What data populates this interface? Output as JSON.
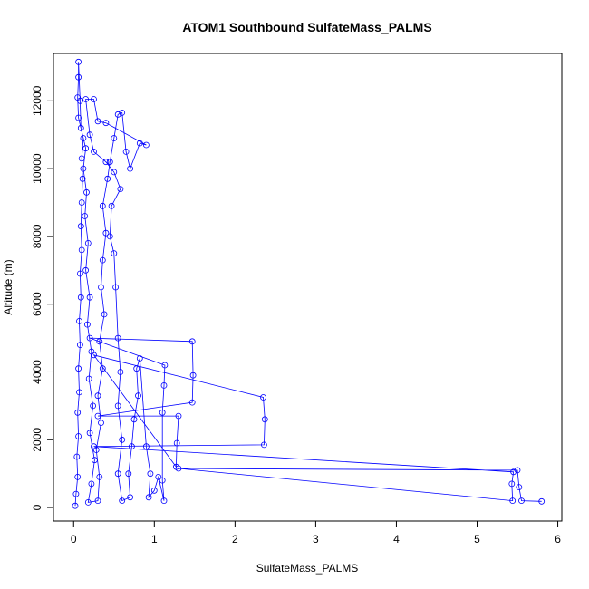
{
  "chart_data": {
    "type": "scatter",
    "title": "ATOM1 Southbound SulfateMass_PALMS",
    "xlabel": "SulfateMass_PALMS",
    "ylabel": "Altitude (m)",
    "xlim": [
      -0.25,
      6.05
    ],
    "ylim": [
      -400,
      13400
    ],
    "x_ticks": [
      0,
      1,
      2,
      3,
      4,
      5,
      6
    ],
    "x_tick_labels": [
      "0",
      "1",
      "2",
      "3",
      "4",
      "5",
      "6"
    ],
    "y_ticks": [
      0,
      2000,
      4000,
      6000,
      8000,
      10000,
      12000
    ],
    "y_tick_labels": [
      "0",
      "2000",
      "4000",
      "6000",
      "8000",
      "10000",
      "12000"
    ],
    "grid": false,
    "marker": "open circle joined by lines",
    "color": "#0000ff",
    "series": [
      {
        "values": [
          [
            0.02,
            50
          ],
          [
            0.03,
            400
          ],
          [
            0.05,
            900
          ],
          [
            0.04,
            1500
          ],
          [
            0.06,
            2100
          ],
          [
            0.05,
            2800
          ],
          [
            0.07,
            3400
          ],
          [
            0.06,
            4100
          ],
          [
            0.08,
            4800
          ],
          [
            0.07,
            5500
          ],
          [
            0.09,
            6200
          ],
          [
            0.08,
            6900
          ],
          [
            0.1,
            7600
          ],
          [
            0.09,
            8300
          ],
          [
            0.1,
            9000
          ],
          [
            0.11,
            9700
          ],
          [
            0.1,
            10300
          ],
          [
            0.12,
            10900
          ],
          [
            0.06,
            11500
          ],
          [
            0.05,
            12100
          ],
          [
            0.06,
            12700
          ],
          [
            0.06,
            13150
          ],
          [
            0.08,
            12000
          ],
          [
            0.09,
            11200
          ],
          [
            0.15,
            10600
          ],
          [
            0.12,
            10000
          ],
          [
            0.16,
            9300
          ],
          [
            0.14,
            8600
          ],
          [
            0.18,
            7800
          ],
          [
            0.15,
            7000
          ],
          [
            0.2,
            6200
          ],
          [
            0.17,
            5400
          ],
          [
            0.22,
            4600
          ],
          [
            0.19,
            3800
          ],
          [
            0.24,
            3000
          ],
          [
            0.2,
            2200
          ],
          [
            0.26,
            1400
          ],
          [
            0.22,
            700
          ],
          [
            0.18,
            150
          ],
          [
            0.3,
            200
          ],
          [
            0.32,
            900
          ],
          [
            0.28,
            1700
          ],
          [
            0.34,
            2500
          ],
          [
            0.3,
            3300
          ],
          [
            0.36,
            4100
          ],
          [
            0.32,
            4900
          ],
          [
            0.38,
            5700
          ],
          [
            0.34,
            6500
          ],
          [
            0.36,
            7300
          ],
          [
            0.4,
            8100
          ],
          [
            0.36,
            8900
          ],
          [
            0.42,
            9700
          ],
          [
            0.45,
            10200
          ],
          [
            0.5,
            10900
          ],
          [
            0.55,
            11600
          ],
          [
            0.6,
            11650
          ],
          [
            0.65,
            10500
          ],
          [
            0.7,
            10000
          ],
          [
            0.82,
            10750
          ],
          [
            0.9,
            10700
          ],
          [
            0.4,
            11350
          ],
          [
            0.3,
            11400
          ],
          [
            0.25,
            12050
          ],
          [
            0.15,
            12050
          ],
          [
            0.2,
            11000
          ],
          [
            0.25,
            10500
          ],
          [
            0.4,
            10200
          ],
          [
            0.5,
            9900
          ],
          [
            0.58,
            9400
          ],
          [
            0.47,
            8900
          ],
          [
            0.45,
            8000
          ],
          [
            0.5,
            7500
          ],
          [
            0.52,
            6500
          ],
          [
            0.55,
            5000
          ],
          [
            0.58,
            4000
          ],
          [
            0.55,
            3000
          ],
          [
            0.6,
            2000
          ],
          [
            0.55,
            1000
          ],
          [
            0.6,
            200
          ],
          [
            0.7,
            300
          ],
          [
            0.68,
            1000
          ],
          [
            0.72,
            1800
          ],
          [
            0.75,
            2600
          ],
          [
            0.8,
            3300
          ],
          [
            0.78,
            4100
          ],
          [
            0.82,
            4400
          ],
          [
            0.9,
            1800
          ],
          [
            0.95,
            1000
          ],
          [
            0.93,
            300
          ],
          [
            1.0,
            500
          ],
          [
            1.05,
            900
          ],
          [
            1.12,
            200
          ],
          [
            1.1,
            800
          ],
          [
            1.1,
            2800
          ],
          [
            1.12,
            3600
          ],
          [
            1.13,
            4200
          ],
          [
            0.2,
            5000
          ],
          [
            1.47,
            4900
          ],
          [
            1.48,
            3900
          ],
          [
            1.47,
            3100
          ],
          [
            0.3,
            2700
          ],
          [
            1.3,
            2700
          ],
          [
            1.28,
            1900
          ],
          [
            1.27,
            1200
          ],
          [
            0.25,
            4500
          ],
          [
            2.35,
            3250
          ],
          [
            2.37,
            2600
          ],
          [
            2.36,
            1850
          ],
          [
            0.25,
            1800
          ],
          [
            5.45,
            1050
          ],
          [
            5.43,
            700
          ],
          [
            5.44,
            200
          ],
          [
            1.3,
            1150
          ],
          [
            5.5,
            1100
          ],
          [
            5.52,
            600
          ],
          [
            5.55,
            200
          ],
          [
            5.8,
            180
          ]
        ]
      }
    ]
  }
}
